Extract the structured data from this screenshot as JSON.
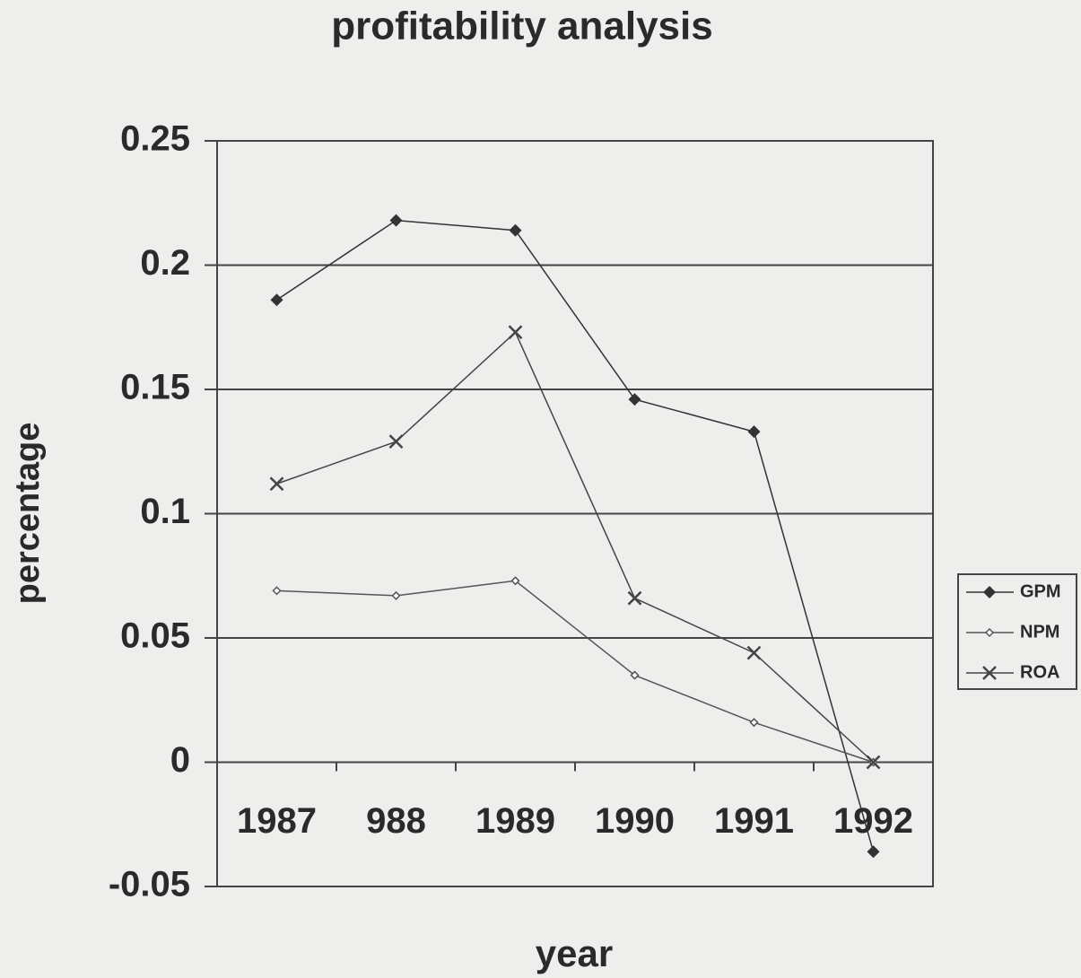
{
  "chart_data": {
    "type": "line",
    "title": "profitability analysis",
    "x_label": "year",
    "y_label": "percentage",
    "categories": [
      "1987",
      "988",
      "1989",
      "1990",
      "1991",
      "1992"
    ],
    "series": [
      {
        "name": "GPM",
        "color": "#333333",
        "marker": "diamond",
        "values": [
          0.186,
          0.218,
          0.214,
          0.146,
          0.133,
          -0.036
        ]
      },
      {
        "name": "NPM",
        "color": "#555555",
        "marker": "small-diamond",
        "values": [
          0.069,
          0.067,
          0.073,
          0.035,
          0.016,
          0
        ]
      },
      {
        "name": "ROA",
        "color": "#444444",
        "marker": "x",
        "values": [
          0.112,
          0.129,
          0.173,
          0.066,
          0.044,
          0
        ]
      }
    ],
    "ylim": [
      -0.05,
      0.25
    ],
    "yticks": [
      -0.05,
      0,
      0.05,
      0.1,
      0.15,
      0.2,
      0.25
    ],
    "grid": true,
    "legend": "right"
  }
}
